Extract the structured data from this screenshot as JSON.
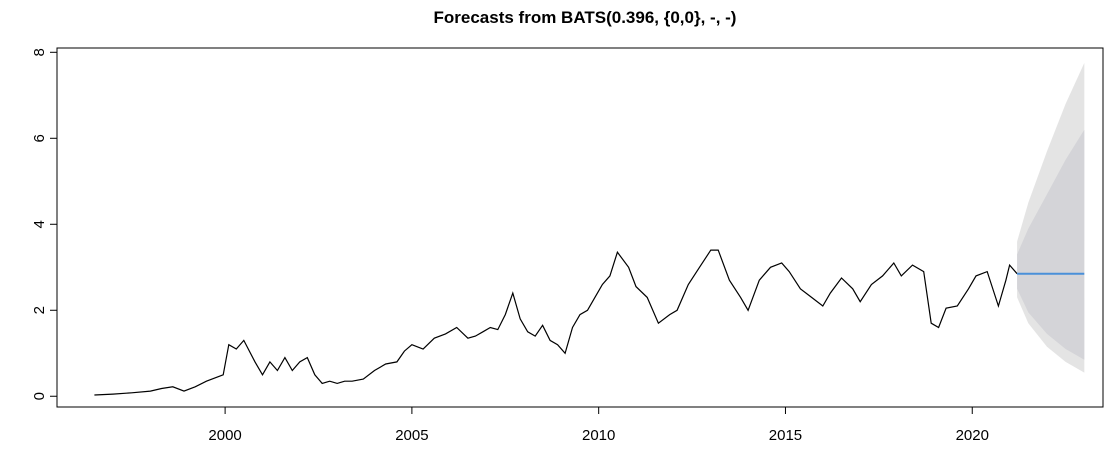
{
  "chart_data": {
    "type": "line",
    "title": "Forecasts from BATS(0.396, {0,0}, -, -)",
    "xlabel": "",
    "ylabel": "",
    "xlim": [
      1995.5,
      2023.5
    ],
    "ylim": [
      -0.25,
      8.1
    ],
    "x_ticks": [
      2000,
      2005,
      2010,
      2015,
      2020
    ],
    "x_tick_labels": [
      "2000",
      "2005",
      "2010",
      "2015",
      "2020"
    ],
    "y_ticks": [
      0,
      2,
      4,
      6,
      8
    ],
    "y_tick_labels": [
      "0",
      "2",
      "4",
      "6",
      "8"
    ],
    "grid": false,
    "colors": {
      "history": "#000000",
      "forecast": "#4a90d9",
      "band80": "#d4d4d8",
      "band95": "#e4e4e4"
    },
    "series": [
      {
        "role": "history",
        "x": [
          1996.5,
          1997.0,
          1997.5,
          1998.0,
          1998.3,
          1998.6,
          1998.9,
          1999.2,
          1999.5,
          1999.8,
          1999.95,
          2000.1,
          2000.3,
          2000.5,
          2000.8,
          2001.0,
          2001.2,
          2001.4,
          2001.6,
          2001.8,
          2002.0,
          2002.2,
          2002.4,
          2002.6,
          2002.8,
          2003.0,
          2003.2,
          2003.4,
          2003.7,
          2004.0,
          2004.3,
          2004.6,
          2004.8,
          2005.0,
          2005.3,
          2005.6,
          2005.9,
          2006.2,
          2006.5,
          2006.7,
          2006.9,
          2007.1,
          2007.3,
          2007.5,
          2007.7,
          2007.9,
          2008.1,
          2008.3,
          2008.5,
          2008.7,
          2008.9,
          2009.1,
          2009.3,
          2009.5,
          2009.7,
          2009.9,
          2010.1,
          2010.3,
          2010.5,
          2010.8,
          2011.0,
          2011.3,
          2011.6,
          2011.9,
          2012.1,
          2012.4,
          2012.7,
          2013.0,
          2013.2,
          2013.5,
          2013.8,
          2014.0,
          2014.3,
          2014.6,
          2014.9,
          2015.1,
          2015.4,
          2015.7,
          2016.0,
          2016.2,
          2016.5,
          2016.8,
          2017.0,
          2017.3,
          2017.6,
          2017.9,
          2018.1,
          2018.4,
          2018.7,
          2018.9,
          2019.1,
          2019.3,
          2019.6,
          2019.9,
          2020.1,
          2020.4,
          2020.7,
          2020.9,
          2021.0,
          2021.2
        ],
        "y": [
          0.03,
          0.05,
          0.08,
          0.12,
          0.18,
          0.22,
          0.12,
          0.22,
          0.35,
          0.45,
          0.5,
          1.2,
          1.1,
          1.3,
          0.8,
          0.5,
          0.8,
          0.6,
          0.9,
          0.6,
          0.8,
          0.9,
          0.5,
          0.3,
          0.35,
          0.3,
          0.35,
          0.35,
          0.4,
          0.6,
          0.75,
          0.8,
          1.05,
          1.2,
          1.1,
          1.35,
          1.45,
          1.6,
          1.35,
          1.4,
          1.5,
          1.6,
          1.55,
          1.9,
          2.4,
          1.8,
          1.5,
          1.4,
          1.65,
          1.3,
          1.2,
          1.0,
          1.6,
          1.9,
          2.0,
          2.3,
          2.6,
          2.8,
          3.35,
          3.0,
          2.55,
          2.3,
          1.7,
          1.9,
          2.0,
          2.6,
          3.0,
          3.4,
          3.4,
          2.7,
          2.3,
          2.0,
          2.7,
          3.0,
          3.1,
          2.9,
          2.5,
          2.3,
          2.1,
          2.4,
          2.75,
          2.5,
          2.2,
          2.6,
          2.8,
          3.1,
          2.8,
          3.05,
          2.9,
          1.7,
          1.6,
          2.05,
          2.1,
          2.5,
          2.8,
          2.9,
          2.1,
          2.7,
          3.05,
          2.85
        ]
      }
    ],
    "forecast": {
      "x": [
        2021.2,
        2023.0
      ],
      "y": [
        2.85,
        2.85
      ],
      "pi80": {
        "x": [
          2021.2,
          2021.5,
          2022.0,
          2022.5,
          2023.0
        ],
        "lower": [
          2.5,
          1.95,
          1.45,
          1.1,
          0.85
        ],
        "upper": [
          3.3,
          3.9,
          4.7,
          5.5,
          6.2
        ]
      },
      "pi95": {
        "x": [
          2021.2,
          2021.5,
          2022.0,
          2022.5,
          2023.0
        ],
        "lower": [
          2.3,
          1.7,
          1.15,
          0.8,
          0.55
        ],
        "upper": [
          3.6,
          4.5,
          5.7,
          6.8,
          7.75
        ]
      }
    }
  }
}
